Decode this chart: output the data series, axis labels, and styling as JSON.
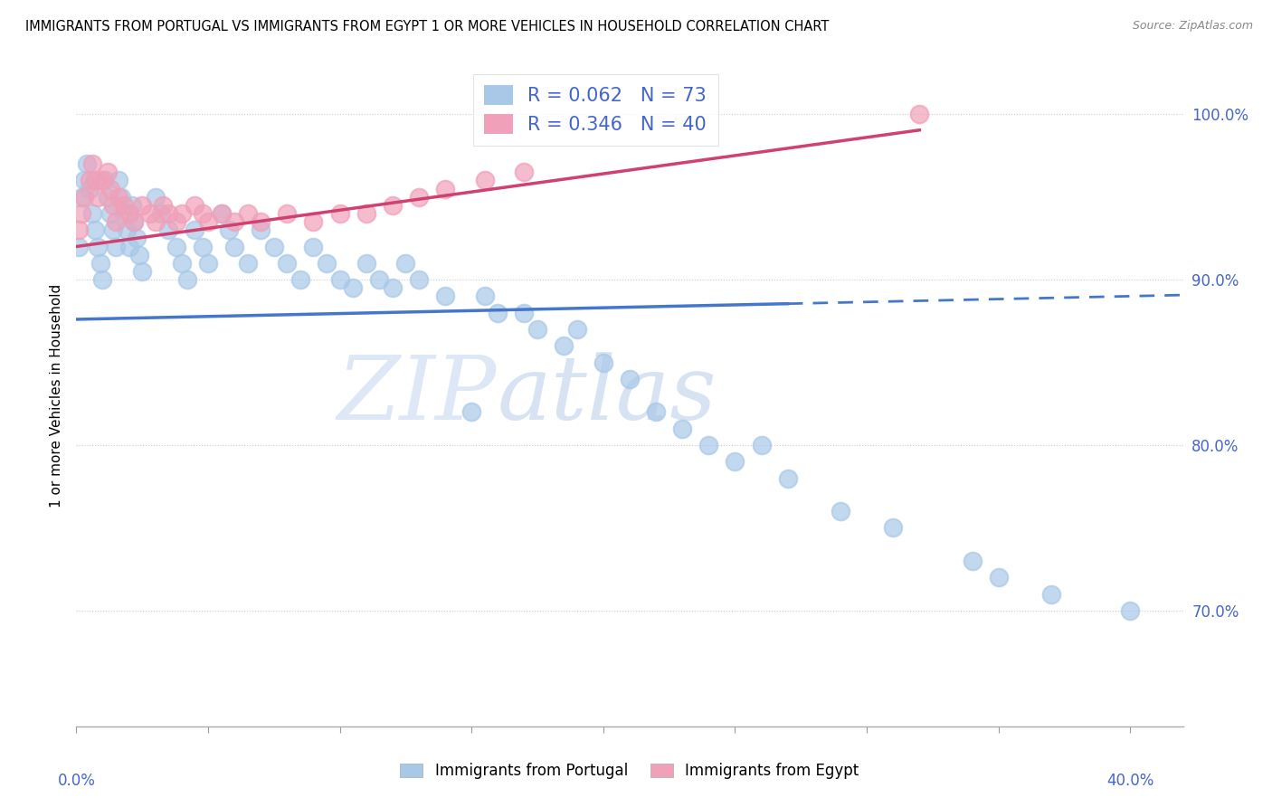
{
  "title": "IMMIGRANTS FROM PORTUGAL VS IMMIGRANTS FROM EGYPT 1 OR MORE VEHICLES IN HOUSEHOLD CORRELATION CHART",
  "source": "Source: ZipAtlas.com",
  "ylabel": "1 or more Vehicles in Household",
  "legend_R_portugal": "0.062",
  "legend_N_portugal": "73",
  "legend_R_egypt": "0.346",
  "legend_N_egypt": "40",
  "color_portugal": "#a8c8e8",
  "color_egypt": "#f0a0b8",
  "color_trendline_portugal": "#4477cc",
  "color_trendline_egypt": "#d04070",
  "color_text_blue": "#4466cc",
  "portugal_x": [
    0.001,
    0.002,
    0.003,
    0.004,
    0.005,
    0.006,
    0.007,
    0.008,
    0.009,
    0.01,
    0.011,
    0.012,
    0.013,
    0.014,
    0.015,
    0.016,
    0.017,
    0.018,
    0.019,
    0.02,
    0.021,
    0.022,
    0.023,
    0.024,
    0.025,
    0.03,
    0.032,
    0.035,
    0.038,
    0.04,
    0.042,
    0.045,
    0.048,
    0.05,
    0.055,
    0.058,
    0.06,
    0.065,
    0.07,
    0.075,
    0.08,
    0.085,
    0.09,
    0.095,
    0.1,
    0.105,
    0.11,
    0.115,
    0.12,
    0.125,
    0.13,
    0.14,
    0.15,
    0.155,
    0.16,
    0.17,
    0.175,
    0.185,
    0.19,
    0.2,
    0.21,
    0.22,
    0.23,
    0.24,
    0.25,
    0.26,
    0.27,
    0.29,
    0.31,
    0.34,
    0.35,
    0.37,
    0.4
  ],
  "portugal_y": [
    0.92,
    0.95,
    0.96,
    0.97,
    0.955,
    0.94,
    0.93,
    0.92,
    0.91,
    0.9,
    0.96,
    0.95,
    0.94,
    0.93,
    0.92,
    0.96,
    0.95,
    0.94,
    0.93,
    0.92,
    0.945,
    0.935,
    0.925,
    0.915,
    0.905,
    0.95,
    0.94,
    0.93,
    0.92,
    0.91,
    0.9,
    0.93,
    0.92,
    0.91,
    0.94,
    0.93,
    0.92,
    0.91,
    0.93,
    0.92,
    0.91,
    0.9,
    0.92,
    0.91,
    0.9,
    0.895,
    0.91,
    0.9,
    0.895,
    0.91,
    0.9,
    0.89,
    0.82,
    0.89,
    0.88,
    0.88,
    0.87,
    0.86,
    0.87,
    0.85,
    0.84,
    0.82,
    0.81,
    0.8,
    0.79,
    0.8,
    0.78,
    0.76,
    0.75,
    0.73,
    0.72,
    0.71,
    0.7
  ],
  "egypt_x": [
    0.001,
    0.002,
    0.003,
    0.005,
    0.006,
    0.007,
    0.008,
    0.01,
    0.012,
    0.013,
    0.014,
    0.015,
    0.016,
    0.018,
    0.02,
    0.022,
    0.025,
    0.028,
    0.03,
    0.033,
    0.035,
    0.038,
    0.04,
    0.045,
    0.048,
    0.05,
    0.055,
    0.06,
    0.065,
    0.07,
    0.08,
    0.09,
    0.1,
    0.11,
    0.12,
    0.13,
    0.14,
    0.155,
    0.17,
    0.32
  ],
  "egypt_y": [
    0.93,
    0.94,
    0.95,
    0.96,
    0.97,
    0.96,
    0.95,
    0.96,
    0.965,
    0.955,
    0.945,
    0.935,
    0.95,
    0.945,
    0.94,
    0.935,
    0.945,
    0.94,
    0.935,
    0.945,
    0.94,
    0.935,
    0.94,
    0.945,
    0.94,
    0.935,
    0.94,
    0.935,
    0.94,
    0.935,
    0.94,
    0.935,
    0.94,
    0.94,
    0.945,
    0.95,
    0.955,
    0.96,
    0.965,
    1.0
  ],
  "xlim": [
    0.0,
    0.42
  ],
  "ylim": [
    0.63,
    1.03
  ],
  "yticks": [
    0.7,
    0.8,
    0.9,
    1.0
  ],
  "ytick_labels": [
    "70.0%",
    "80.0%",
    "90.0%",
    "100.0%"
  ],
  "xtick_positions": [
    0.0,
    0.05,
    0.1,
    0.15,
    0.2,
    0.25,
    0.3,
    0.35,
    0.4
  ],
  "trendline_portugal_x_end": 0.42,
  "trendline_egypt_x_end": 0.32
}
